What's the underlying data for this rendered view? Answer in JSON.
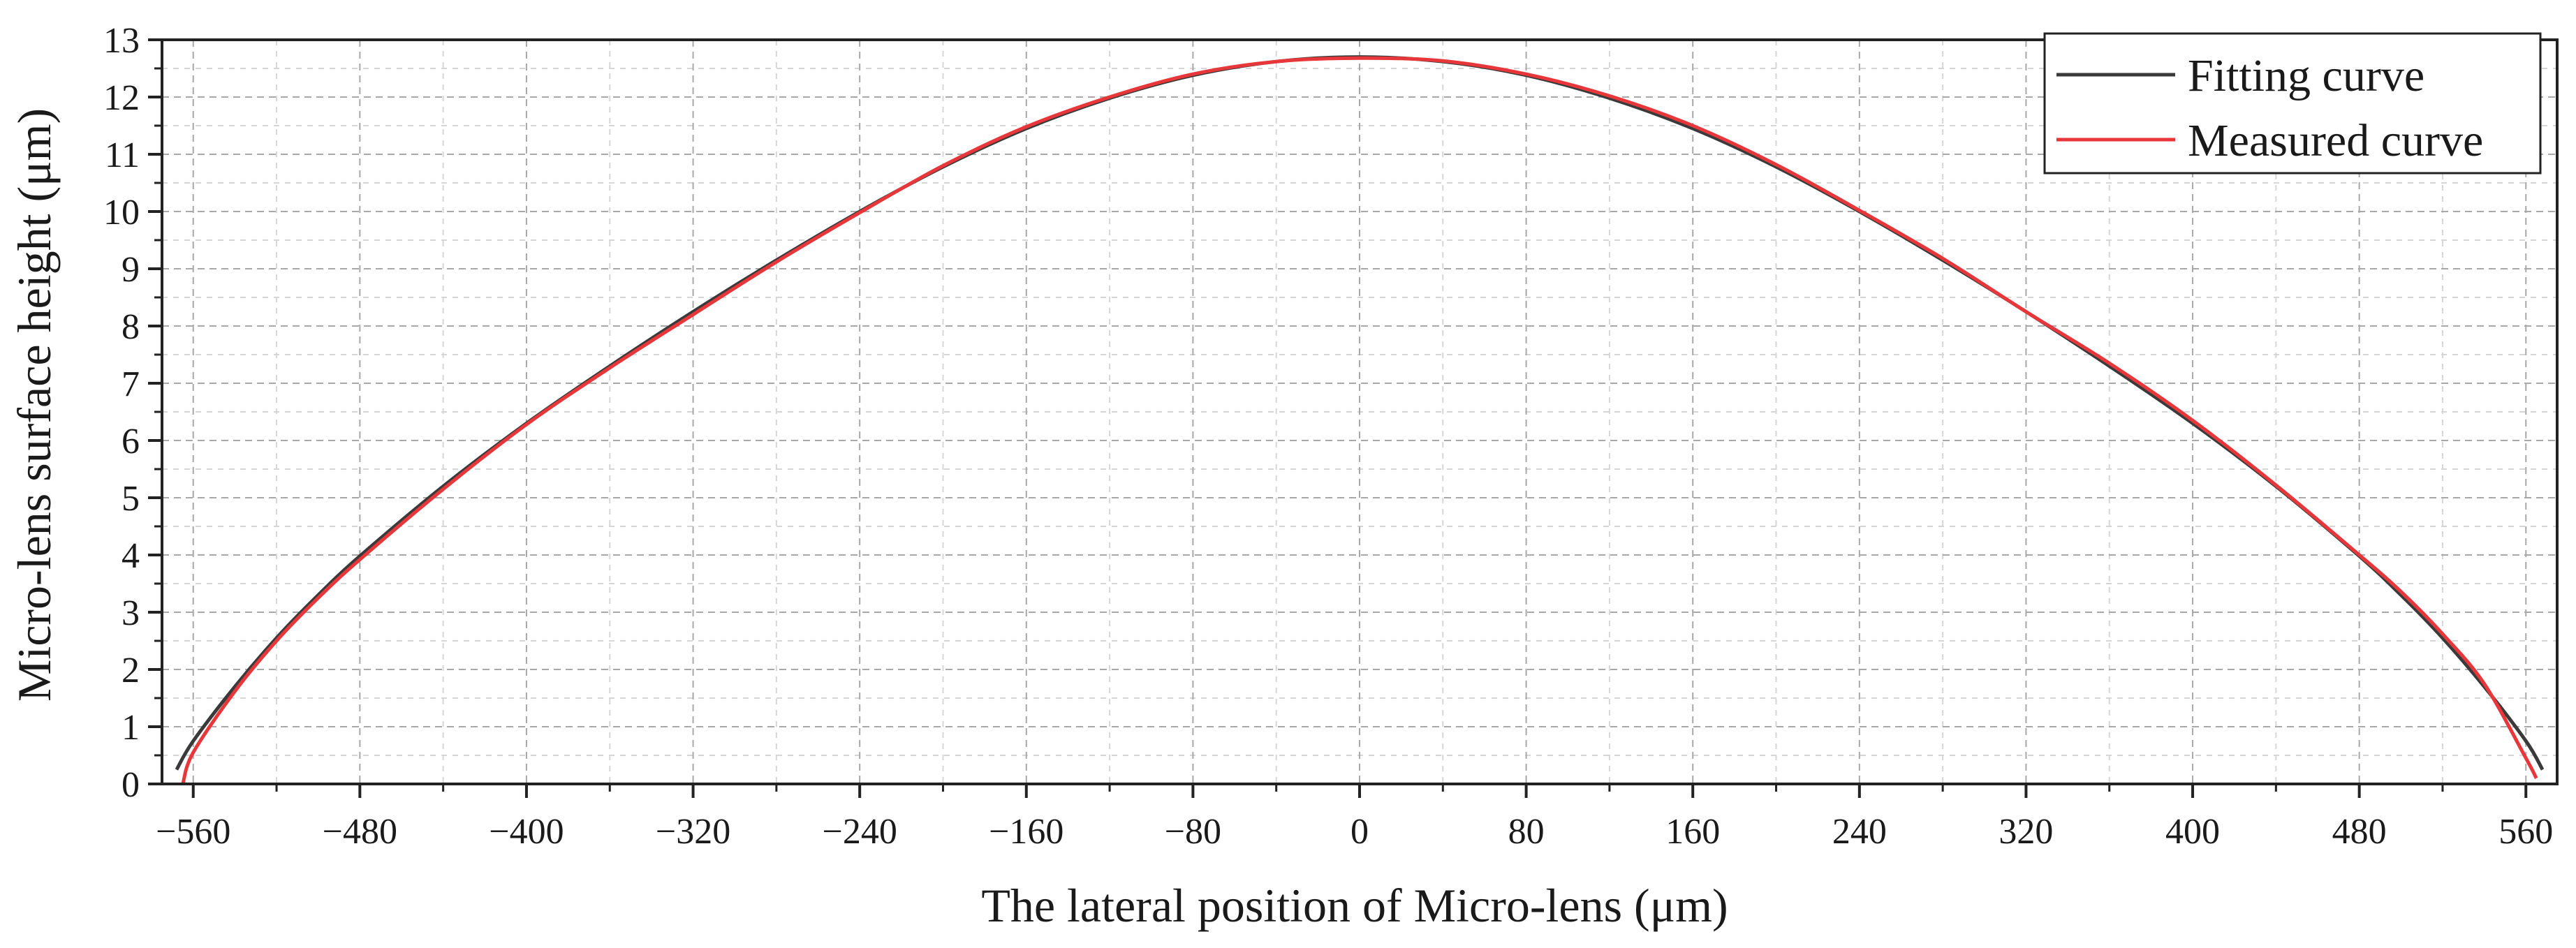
{
  "chart_data": {
    "type": "line",
    "title": "",
    "xlabel": "The lateral position of Micro-lens (μm)",
    "ylabel": "Micro-lens surface height (μm)",
    "xlim": [
      -575,
      575
    ],
    "ylim": [
      0,
      13
    ],
    "xticks": [
      -560,
      -480,
      -400,
      -320,
      -240,
      -160,
      -80,
      0,
      80,
      160,
      240,
      320,
      400,
      480,
      560
    ],
    "xtick_labels": [
      "−560",
      "−480",
      "−400",
      "−320",
      "−240",
      "−160",
      "−80",
      "0",
      "80",
      "160",
      "240",
      "320",
      "400",
      "480",
      "560"
    ],
    "yticks": [
      0,
      1,
      2,
      3,
      4,
      5,
      6,
      7,
      8,
      9,
      10,
      11,
      12,
      13
    ],
    "ytick_labels": [
      "0",
      "1",
      "2",
      "3",
      "4",
      "5",
      "6",
      "7",
      "8",
      "9",
      "10",
      "11",
      "12",
      "13"
    ],
    "grid": true,
    "minor_grid": true,
    "legend_position": "top-right",
    "series": [
      {
        "name": "Fitting curve",
        "color": "#3a3a3a",
        "x": [
          -568,
          -560,
          -540,
          -520,
          -500,
          -480,
          -440,
          -400,
          -360,
          -320,
          -280,
          -240,
          -200,
          -160,
          -120,
          -80,
          -40,
          0,
          40,
          80,
          120,
          160,
          200,
          240,
          280,
          320,
          360,
          400,
          440,
          480,
          500,
          520,
          540,
          560,
          568
        ],
        "y": [
          0.25,
          0.75,
          1.7,
          2.55,
          3.3,
          3.98,
          5.2,
          6.3,
          7.3,
          8.25,
          9.15,
          10.0,
          10.78,
          11.45,
          11.98,
          12.38,
          12.62,
          12.7,
          12.62,
          12.38,
          11.98,
          11.45,
          10.78,
          10.0,
          9.15,
          8.25,
          7.3,
          6.3,
          5.2,
          3.98,
          3.3,
          2.55,
          1.7,
          0.75,
          0.25
        ]
      },
      {
        "name": "Measured curve",
        "color": "#e8373a",
        "x": [
          -565,
          -560,
          -540,
          -520,
          -500,
          -480,
          -440,
          -400,
          -360,
          -320,
          -280,
          -240,
          -200,
          -160,
          -120,
          -80,
          -40,
          0,
          40,
          80,
          120,
          160,
          200,
          240,
          280,
          320,
          360,
          400,
          440,
          480,
          500,
          520,
          540,
          560,
          565
        ],
        "y": [
          0.0,
          0.55,
          1.62,
          2.5,
          3.25,
          3.92,
          5.15,
          6.28,
          7.27,
          8.2,
          9.12,
          9.98,
          10.8,
          11.48,
          12.0,
          12.4,
          12.62,
          12.68,
          12.63,
          12.4,
          12.02,
          11.5,
          10.82,
          10.02,
          9.18,
          8.25,
          7.35,
          6.35,
          5.22,
          4.0,
          3.36,
          2.62,
          1.75,
          0.45,
          0.1
        ]
      }
    ]
  }
}
